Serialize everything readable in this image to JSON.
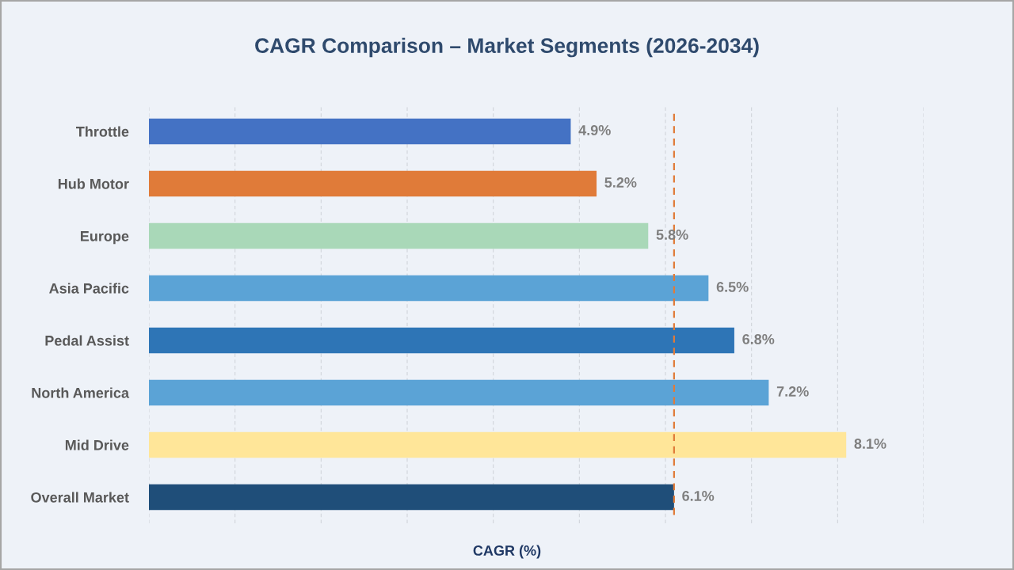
{
  "chart_data": {
    "type": "bar",
    "orientation": "horizontal",
    "title": "CAGR Comparison – Market Segments (2026-2034)",
    "xlabel": "CAGR (%)",
    "categories": [
      "Throttle",
      "Hub Motor",
      "Europe",
      "Asia Pacific",
      "Pedal Assist",
      "North America",
      "Mid Drive",
      "Overall Market"
    ],
    "values": [
      4.9,
      5.2,
      5.8,
      6.5,
      6.8,
      7.2,
      8.1,
      6.1
    ],
    "colors": [
      "#4472c4",
      "#e07b39",
      "#a9d8b8",
      "#5ba3d6",
      "#2e75b6",
      "#5ba3d6",
      "#ffe699",
      "#1f4e79"
    ],
    "value_labels": [
      "4.9%",
      "5.2%",
      "5.8%",
      "6.5%",
      "6.8%",
      "7.2%",
      "8.1%",
      "6.1%"
    ],
    "xlim": [
      0,
      9
    ],
    "xticks": [
      {
        "value": 0,
        "label": null
      },
      {
        "value": 1,
        "label": null
      },
      {
        "value": 2,
        "label": null
      },
      {
        "value": 3,
        "label": null
      },
      {
        "value": 4,
        "label": null
      },
      {
        "value": 5,
        "label": null
      },
      {
        "value": 6,
        "label": null
      },
      {
        "value": 7,
        "label": null
      },
      {
        "value": 8,
        "label": null
      },
      {
        "value": 9,
        "label": null
      }
    ],
    "ref_lines": [
      {
        "axis": "x",
        "value": 6.1,
        "color": "#e07b39",
        "line_style": "dashed"
      }
    ],
    "grid": "x",
    "tick_labels": "y",
    "legend": false
  }
}
